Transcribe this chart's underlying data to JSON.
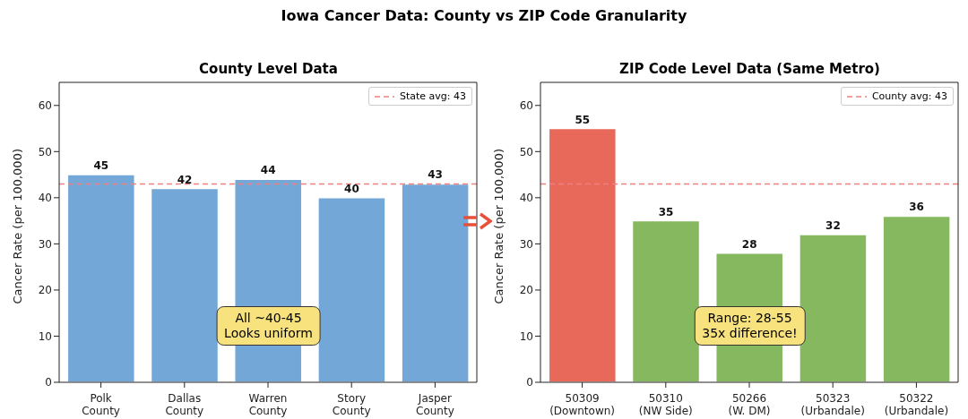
{
  "chart_data": [
    {
      "type": "bar",
      "title": "County Level Data",
      "ylabel": "Cancer Rate (per 100,000)",
      "categories": [
        "Polk\nCounty",
        "Dallas\nCounty",
        "Warren\nCounty",
        "Story\nCounty",
        "Jasper\nCounty"
      ],
      "values": [
        45,
        42,
        44,
        40,
        43
      ],
      "color": "#72a7d8",
      "ylim": [
        0,
        65
      ],
      "yticks": [
        0,
        10,
        20,
        30,
        40,
        50,
        60
      ],
      "grid": false,
      "data_labels": true,
      "legend": "top right",
      "ref_lines": [
        {
          "axis": "y",
          "value": 43,
          "label": "State avg: 43",
          "color": "#f08080",
          "line_style": "dashed"
        }
      ],
      "annotations": [
        "Iowa Cancer Data: County vs ZIP Code Granularity",
        "All ~40-45\nLooks uniform"
      ]
    },
    {
      "type": "bar",
      "title": "ZIP Code Level Data (Same Metro)",
      "ylabel": "Cancer Rate (per 100,000)",
      "categories": [
        "50309\n(Downtown)",
        "50310\n(NW Side)",
        "50266\n(W. DM)",
        "50323\n(Urbandale)",
        "50322\n(Urbandale)"
      ],
      "values": [
        55,
        35,
        28,
        32,
        36
      ],
      "colors": [
        "#e8685a",
        "#86b85f",
        "#86b85f",
        "#86b85f",
        "#86b85f"
      ],
      "ylim": [
        0,
        65
      ],
      "yticks": [
        0,
        10,
        20,
        30,
        40,
        50,
        60
      ],
      "grid": false,
      "data_labels": true,
      "legend": "top right",
      "ref_lines": [
        {
          "axis": "y",
          "value": 43,
          "label": "County avg: 43",
          "color": "#f08080",
          "line_style": "dashed"
        }
      ],
      "annotations": [
        "Range: 28-55\n35x difference!"
      ]
    }
  ]
}
